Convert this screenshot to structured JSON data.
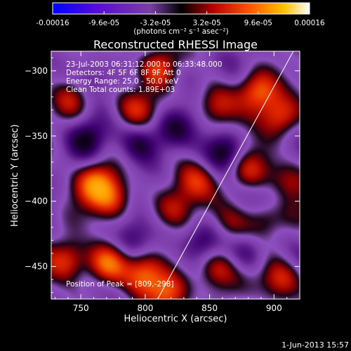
{
  "colorbar": {
    "tick_labels": [
      "-0.00016",
      "-9.6e-05",
      "-3.2e-05",
      "3.2e-05",
      "9.6e-05",
      "0.00016"
    ],
    "unit_label": "(photons cm⁻² s⁻¹ asec⁻²)",
    "min": -0.00016,
    "max": 0.00016
  },
  "chart_data": {
    "type": "heatmap",
    "title": "Reconstructed RHESSI Image",
    "xlabel": "Heliocentric X (arcsec)",
    "ylabel": "Heliocentric Y (arcsec)",
    "xlim": [
      727,
      920
    ],
    "ylim": [
      -475,
      -285
    ],
    "x_ticks": [
      750,
      800,
      850,
      900
    ],
    "x_tick_labels": [
      "750",
      "800",
      "850",
      "900"
    ],
    "y_ticks": [
      -300,
      -350,
      -400,
      -450
    ],
    "y_tick_labels": [
      "−300",
      "−350",
      "−400",
      "−450"
    ],
    "annotations": [
      "23-Jul-2003 06:31:12.000 to 06:33:48.000",
      "Detectors: 4F 5F 6F 8F 9F  Att 0",
      "Energy Range: 25.0 - 50.0 keV",
      "Clean     Total counts: 1.89E+03"
    ],
    "peak_label": "Position of Peak = [809,-298]",
    "peak": {
      "x": 809,
      "y": -298
    },
    "limb_line": [
      [
        808,
        -478
      ],
      [
        915,
        -285
      ]
    ],
    "blobs": [
      {
        "x": 809,
        "y": -298,
        "amp": 1.0
      },
      {
        "x": 888,
        "y": -316,
        "amp": 0.95
      },
      {
        "x": 905,
        "y": -335,
        "amp": 0.8
      },
      {
        "x": 855,
        "y": -326,
        "amp": 0.55
      },
      {
        "x": 792,
        "y": -328,
        "amp": 0.6
      },
      {
        "x": 742,
        "y": -322,
        "amp": 0.55
      },
      {
        "x": 762,
        "y": -386,
        "amp": 0.9
      },
      {
        "x": 775,
        "y": -398,
        "amp": 0.75
      },
      {
        "x": 840,
        "y": -385,
        "amp": 0.6
      },
      {
        "x": 822,
        "y": -406,
        "amp": 0.5
      },
      {
        "x": 880,
        "y": -376,
        "amp": 0.65
      },
      {
        "x": 892,
        "y": -412,
        "amp": 0.6
      },
      {
        "x": 867,
        "y": -418,
        "amp": 0.45
      },
      {
        "x": 740,
        "y": -445,
        "amp": 0.85
      },
      {
        "x": 770,
        "y": -448,
        "amp": 0.95
      },
      {
        "x": 800,
        "y": -455,
        "amp": 0.75
      },
      {
        "x": 855,
        "y": -452,
        "amp": 0.7
      },
      {
        "x": 906,
        "y": -460,
        "amp": 0.8
      },
      {
        "x": 820,
        "y": -470,
        "amp": 0.9
      },
      {
        "x": 910,
        "y": -385,
        "amp": 0.55
      },
      {
        "x": 795,
        "y": -355,
        "amp": -0.7
      },
      {
        "x": 820,
        "y": -345,
        "amp": -0.5
      },
      {
        "x": 862,
        "y": -362,
        "amp": -0.75
      },
      {
        "x": 755,
        "y": -352,
        "amp": -0.55
      },
      {
        "x": 845,
        "y": -430,
        "amp": -0.6
      },
      {
        "x": 790,
        "y": -430,
        "amp": -0.5
      },
      {
        "x": 880,
        "y": -440,
        "amp": -0.55
      },
      {
        "x": 835,
        "y": -300,
        "amp": -0.4
      },
      {
        "x": 760,
        "y": -305,
        "amp": -0.45
      },
      {
        "x": 900,
        "y": -398,
        "amp": -0.35
      }
    ]
  },
  "footer_date": "1-Jun-2013 15:57"
}
